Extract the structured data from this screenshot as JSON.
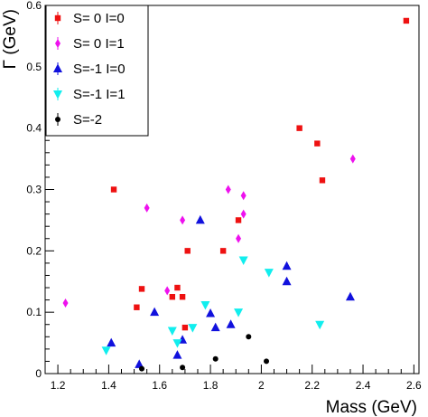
{
  "chart_data": {
    "type": "scatter",
    "xlabel": "Mass (GeV)",
    "ylabel": "Γ (GeV)",
    "xlim": [
      1.15,
      2.62
    ],
    "ylim": [
      0,
      0.6
    ],
    "x_ticks": [
      "1.2",
      "1.4",
      "1.6",
      "1.8",
      "2",
      "2.2",
      "2.4",
      "2.6"
    ],
    "y_ticks": [
      "0",
      "0.1",
      "0.2",
      "0.3",
      "0.4",
      "0.5",
      "0.6"
    ],
    "x_tick_values": [
      1.2,
      1.4,
      1.6,
      1.8,
      2.0,
      2.2,
      2.4,
      2.6
    ],
    "y_tick_values": [
      0,
      0.1,
      0.2,
      0.3,
      0.4,
      0.5,
      0.6
    ],
    "legend_placement": "top-left",
    "grid": false,
    "series": [
      {
        "name": "S= 0 I=0",
        "marker": "square",
        "color": "#ee1111",
        "points": [
          [
            1.42,
            0.3
          ],
          [
            1.51,
            0.108
          ],
          [
            1.53,
            0.138
          ],
          [
            1.65,
            0.125
          ],
          [
            1.67,
            0.14
          ],
          [
            1.69,
            0.125
          ],
          [
            1.7,
            0.075
          ],
          [
            1.71,
            0.2
          ],
          [
            1.85,
            0.2
          ],
          [
            1.91,
            0.25
          ],
          [
            2.15,
            0.4
          ],
          [
            2.22,
            0.375
          ],
          [
            2.24,
            0.315
          ],
          [
            2.57,
            0.575
          ]
        ]
      },
      {
        "name": "S= 0 I=1",
        "marker": "diamond",
        "color": "#ee11ee",
        "points": [
          [
            1.23,
            0.115
          ],
          [
            1.55,
            0.27
          ],
          [
            1.63,
            0.135
          ],
          [
            1.69,
            0.25
          ],
          [
            1.87,
            0.3
          ],
          [
            1.91,
            0.22
          ],
          [
            1.93,
            0.29
          ],
          [
            1.93,
            0.26
          ],
          [
            2.36,
            0.35
          ]
        ]
      },
      {
        "name": "S=-1 I=0",
        "marker": "triangle-up",
        "color": "#1111dd",
        "points": [
          [
            1.41,
            0.05
          ],
          [
            1.52,
            0.015
          ],
          [
            1.58,
            0.1
          ],
          [
            1.67,
            0.03
          ],
          [
            1.69,
            0.055
          ],
          [
            1.76,
            0.25
          ],
          [
            1.8,
            0.098
          ],
          [
            1.82,
            0.075
          ],
          [
            1.88,
            0.08
          ],
          [
            2.1,
            0.175
          ],
          [
            2.1,
            0.15
          ],
          [
            2.35,
            0.125
          ]
        ]
      },
      {
        "name": "S=-1 I=1",
        "marker": "triangle-down",
        "color": "#11eeee",
        "points": [
          [
            1.39,
            0.038
          ],
          [
            1.65,
            0.07
          ],
          [
            1.67,
            0.05
          ],
          [
            1.73,
            0.075
          ],
          [
            1.78,
            0.112
          ],
          [
            1.91,
            0.1
          ],
          [
            1.93,
            0.185
          ],
          [
            2.03,
            0.165
          ],
          [
            2.23,
            0.08
          ]
        ]
      },
      {
        "name": "S=-2",
        "marker": "circle",
        "color": "#000000",
        "points": [
          [
            1.53,
            0.008
          ],
          [
            1.69,
            0.01
          ],
          [
            1.82,
            0.024
          ],
          [
            1.95,
            0.06
          ],
          [
            2.02,
            0.02
          ]
        ]
      }
    ]
  }
}
